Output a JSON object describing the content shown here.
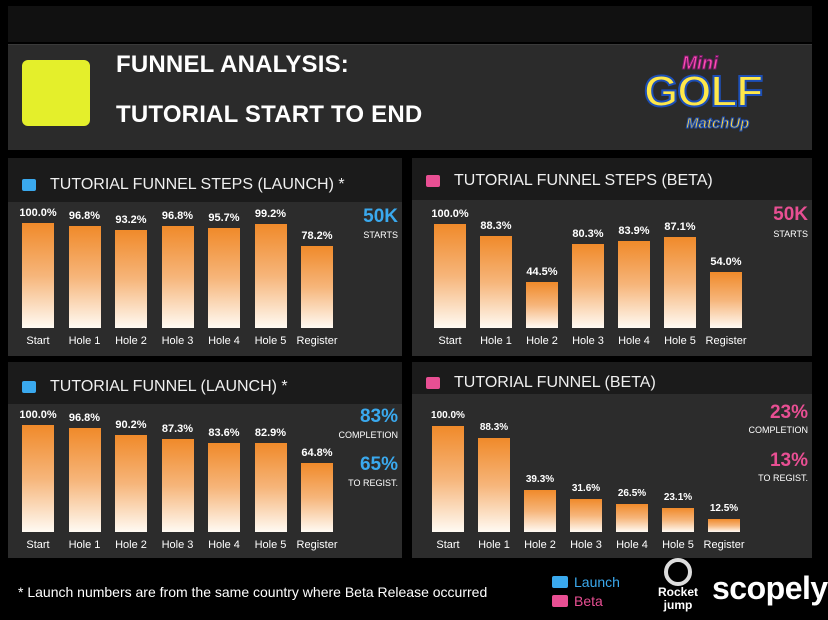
{
  "header": {
    "title_line1": "FUNNEL ANALYSIS:",
    "title_line2": "TUTORIAL START TO END",
    "accent_color": "#e4ef2b"
  },
  "logo": {
    "mini": "Mini",
    "golf": "GOLF",
    "matchup": "MatchUp"
  },
  "colors": {
    "launch": "#3aa9ee",
    "beta": "#e84f93",
    "bar_top": "#f08a2a",
    "bar_bottom": "#fffaf3"
  },
  "chart_data": [
    {
      "type": "bar",
      "title": "TUTORIAL FUNNEL STEPS (LAUNCH) *",
      "categories": [
        "Start",
        "Hole 1",
        "Hole 2",
        "Hole 3",
        "Hole 4",
        "Hole 5",
        "Register"
      ],
      "values": [
        100.0,
        96.8,
        93.2,
        96.8,
        95.7,
        99.2,
        78.2
      ],
      "value_labels": [
        "100.0%",
        "96.8%",
        "93.2%",
        "96.8%",
        "95.7%",
        "99.2%",
        "78.2%"
      ],
      "ylim": [
        0,
        100
      ],
      "series_color": "launch",
      "stats": [
        {
          "value": "50K",
          "label": "STARTS"
        }
      ]
    },
    {
      "type": "bar",
      "title": "TUTORIAL FUNNEL STEPS (BETA)",
      "categories": [
        "Start",
        "Hole 1",
        "Hole 2",
        "Hole 3",
        "Hole 4",
        "Hole 5",
        "Register"
      ],
      "values": [
        100.0,
        88.3,
        44.5,
        80.3,
        83.9,
        87.1,
        54.0
      ],
      "value_labels": [
        "100.0%",
        "88.3%",
        "44.5%",
        "80.3%",
        "83.9%",
        "87.1%",
        "54.0%"
      ],
      "ylim": [
        0,
        100
      ],
      "series_color": "beta",
      "stats": [
        {
          "value": "50K",
          "label": "STARTS"
        }
      ]
    },
    {
      "type": "bar",
      "title": "TUTORIAL FUNNEL (LAUNCH) *",
      "categories": [
        "Start",
        "Hole 1",
        "Hole 2",
        "Hole 3",
        "Hole 4",
        "Hole 5",
        "Register"
      ],
      "values": [
        100.0,
        96.8,
        90.2,
        87.3,
        83.6,
        82.9,
        64.8
      ],
      "value_labels": [
        "100.0%",
        "96.8%",
        "90.2%",
        "87.3%",
        "83.6%",
        "82.9%",
        "64.8%"
      ],
      "ylim": [
        0,
        100
      ],
      "series_color": "launch",
      "stats": [
        {
          "value": "83%",
          "label": "COMPLETION"
        },
        {
          "value": "65%",
          "label": "TO REGIST."
        }
      ]
    },
    {
      "type": "bar",
      "title": "TUTORIAL FUNNEL (BETA)",
      "categories": [
        "Start",
        "Hole 1",
        "Hole 2",
        "Hole 3",
        "Hole 4",
        "Hole 5",
        "Register"
      ],
      "values": [
        100.0,
        88.3,
        39.3,
        31.6,
        26.5,
        23.1,
        12.5
      ],
      "value_labels": [
        "100.0%",
        "88.3%",
        "39.3%",
        "31.6%",
        "26.5%",
        "23.1%",
        "12.5%"
      ],
      "ylim": [
        0,
        100
      ],
      "series_color": "beta",
      "stats": [
        {
          "value": "23%",
          "label": "COMPLETION"
        },
        {
          "value": "13%",
          "label": "TO REGIST."
        }
      ]
    }
  ],
  "footer": {
    "footnote": "* Launch numbers are from the same country where Beta Release occurred",
    "legend": [
      {
        "label": "Launch",
        "color": "launch"
      },
      {
        "label": "Beta",
        "color": "beta"
      }
    ],
    "brand_rocket": "Rocket\njump",
    "brand_scopely": "scopely"
  }
}
